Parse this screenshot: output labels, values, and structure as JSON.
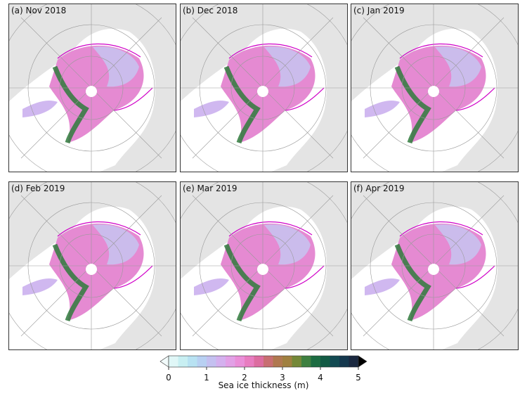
{
  "panels": [
    {
      "label": "(a) Nov 2018"
    },
    {
      "label": "(b) Dec 2018"
    },
    {
      "label": "(c) Jan 2019"
    },
    {
      "label": "(d) Feb 2019"
    },
    {
      "label": "(e) Mar 2019"
    },
    {
      "label": "(f) Apr 2019"
    }
  ],
  "colorbar": {
    "label": "Sea ice thickness (m)",
    "lim": [
      0,
      5
    ],
    "ticks": [
      0,
      1,
      2,
      3,
      4,
      5
    ],
    "under_color": "#f2fbfb",
    "over_color": "#000000",
    "colors": [
      "#e0f7f7",
      "#c8eff2",
      "#b8e2f2",
      "#b8d0f2",
      "#c4c0f0",
      "#d4b0ee",
      "#e2a0e6",
      "#ea8ed8",
      "#e87cc0",
      "#dc6ca0",
      "#c86e72",
      "#b07850",
      "#a08040",
      "#748838",
      "#3e8040",
      "#1c6c42",
      "#125a44",
      "#124a52",
      "#14384e",
      "#1a2840"
    ]
  }
}
